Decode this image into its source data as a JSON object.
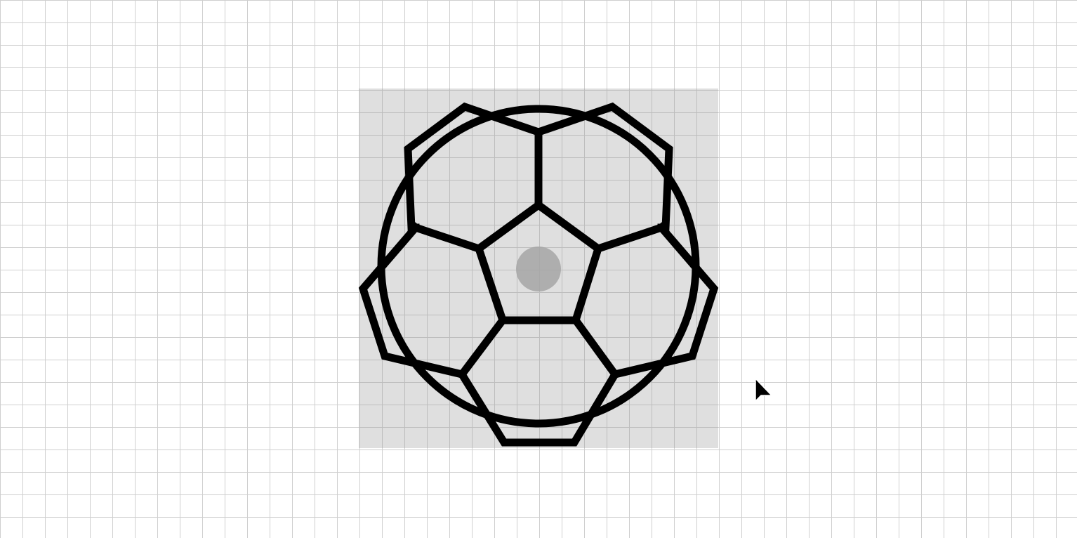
{
  "canvas": {
    "grid_color": "#cfcfcf",
    "background_color": "#ffffff"
  },
  "selection": {
    "fill_color": "#969696"
  },
  "icon": {
    "name": "soccer-ball-icon",
    "stroke_color": "#000000"
  },
  "center_handle": {
    "color": "#a6a6a6"
  },
  "cursor": {
    "icon": "arrow-cursor-icon",
    "color": "#000000"
  }
}
